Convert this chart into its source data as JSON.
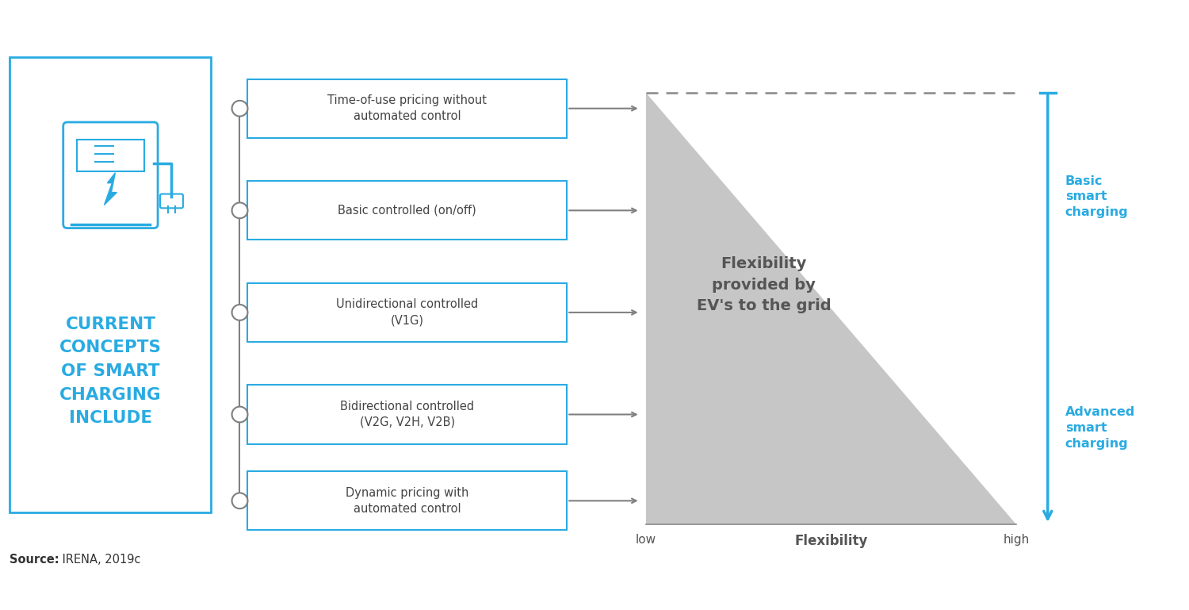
{
  "background_color": "#ffffff",
  "cyan_color": "#29ABE2",
  "gray_color": "#808080",
  "dark_gray": "#555555",
  "box_items": [
    "Time-of-use pricing without\nautomated control",
    "Basic controlled (on/off)",
    "Unidirectional controlled\n(V1G)",
    "Bidirectional controlled\n(V2G, V2H, V2B)",
    "Dynamic pricing with\nautomated control"
  ],
  "left_title": "CURRENT\nCONCEPTS\nOF SMART\nCHARGING\nINCLUDE",
  "chart_label": "Flexibility\nprovided by\nEV's to the grid",
  "x_label": "Flexibility",
  "x_low": "low",
  "x_high": "high",
  "basic_label": "Basic\nsmart\ncharging",
  "advanced_label": "Advanced\nsmart\ncharging",
  "source_bold": "Source:",
  "source_rest": " IRENA, 2019c"
}
